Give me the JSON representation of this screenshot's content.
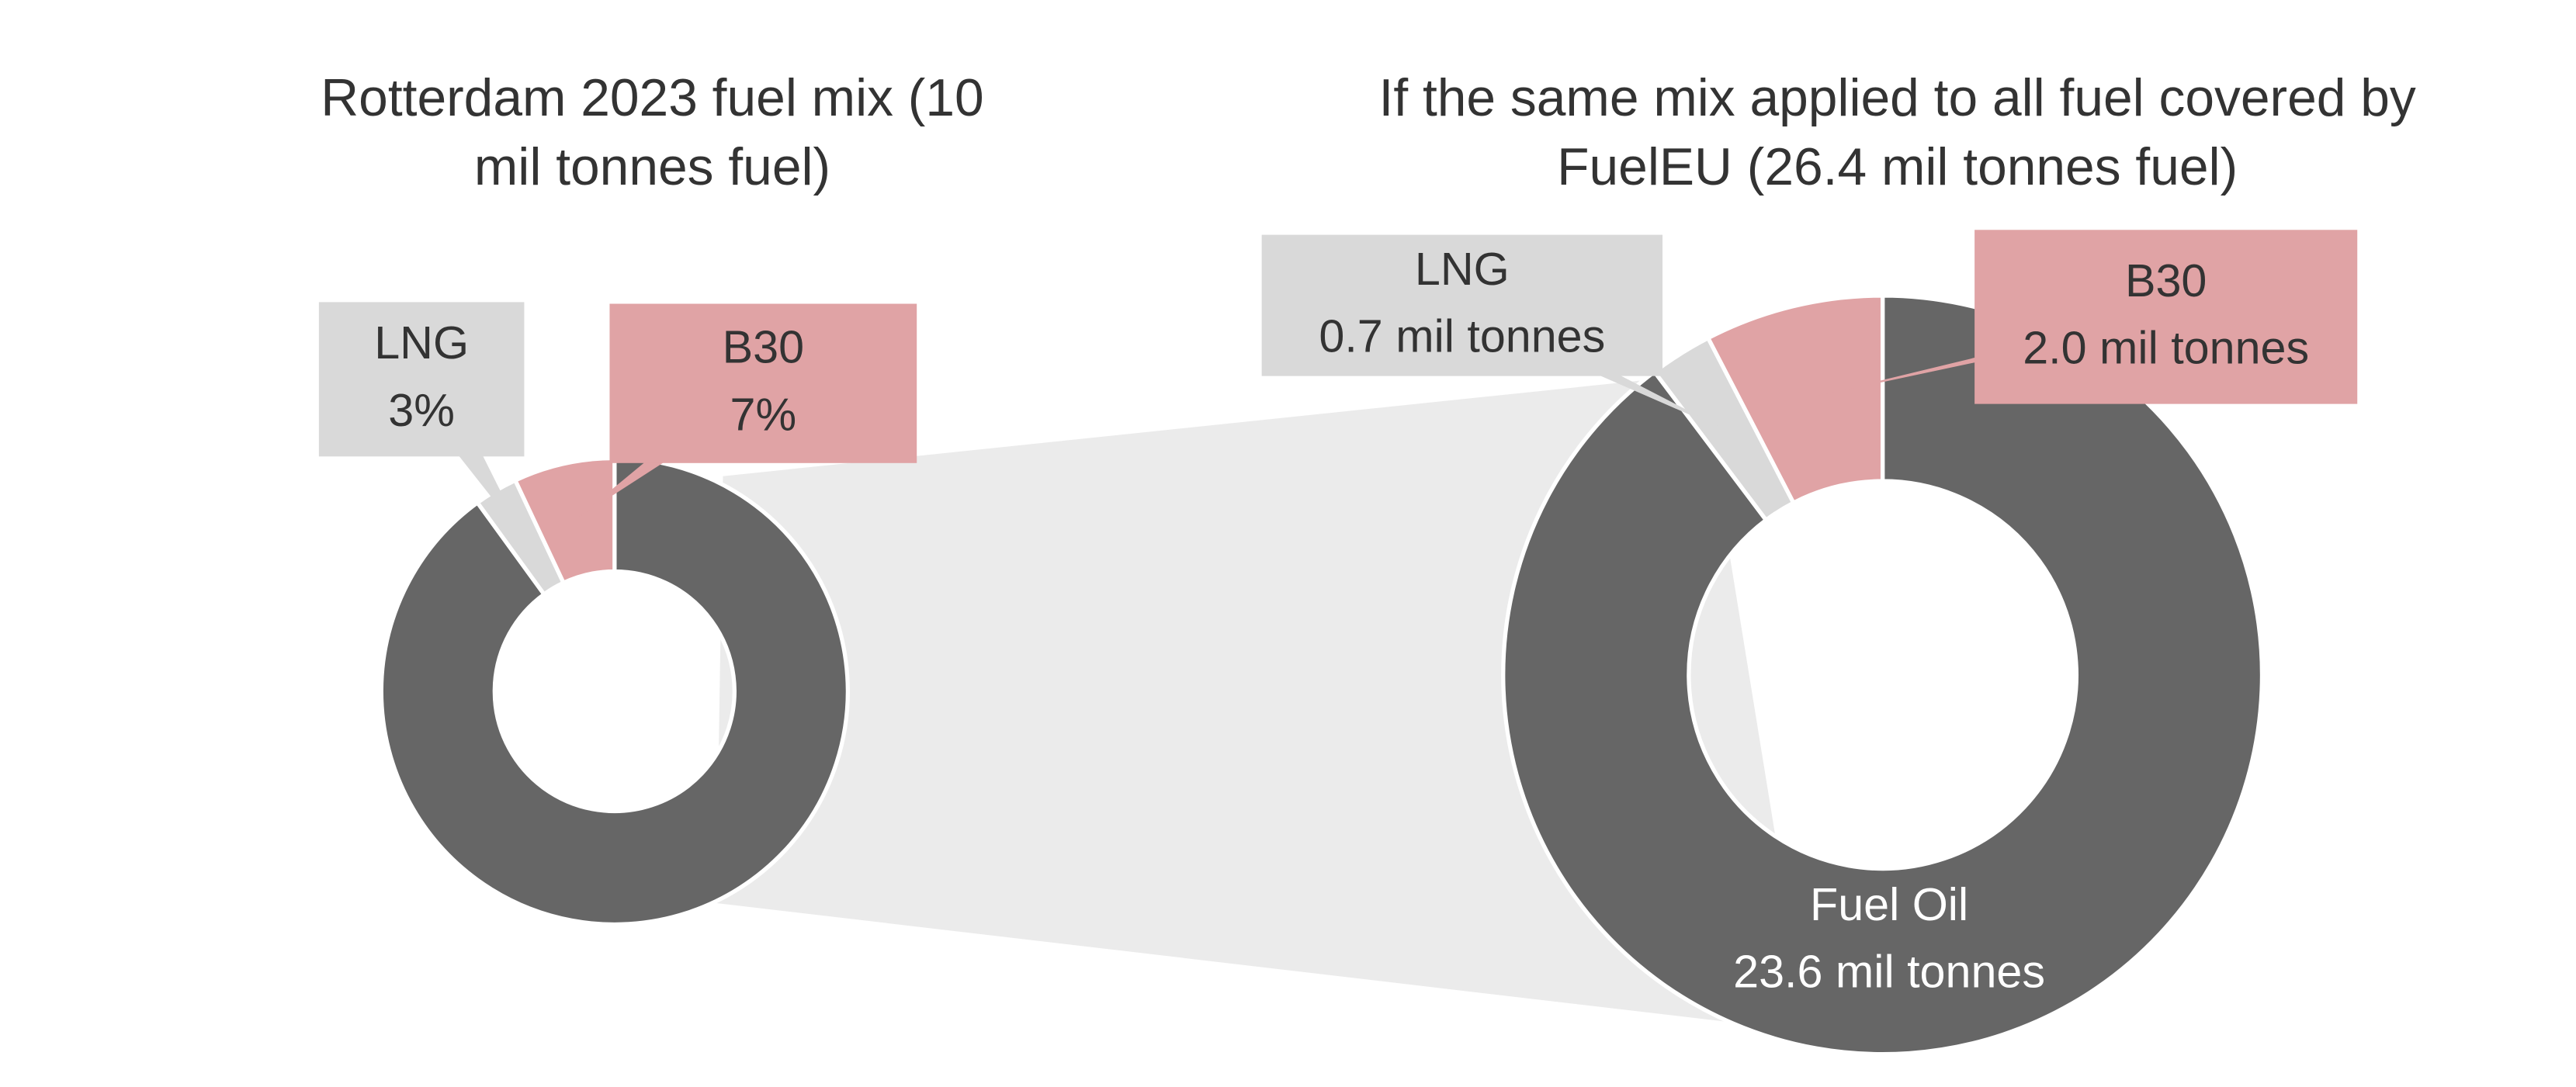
{
  "chart_data": [
    {
      "type": "donut",
      "title": "Rotterdam 2023 fuel mix (10 mil tonnes fuel)",
      "categories": [
        null,
        "LNG",
        "B30"
      ],
      "values": [
        90,
        3,
        7
      ],
      "value_labels": [
        null,
        "3%",
        "7%"
      ],
      "colors": [
        "#666666",
        "#d9d9d9",
        "#e0a3a5"
      ]
    },
    {
      "type": "donut",
      "title": "If the same mix applied to all fuel covered by FuelEU (26.4 mil tonnes fuel)",
      "categories": [
        "Fuel Oil",
        "LNG",
        "B30"
      ],
      "values": [
        23.6,
        0.7,
        2.0
      ],
      "value_labels": [
        "23.6 mil tonnes",
        "0.7 mil tonnes",
        "2.0 mil tonnes"
      ],
      "colors": [
        "#666666",
        "#d9d9d9",
        "#e0a3a5"
      ]
    }
  ]
}
